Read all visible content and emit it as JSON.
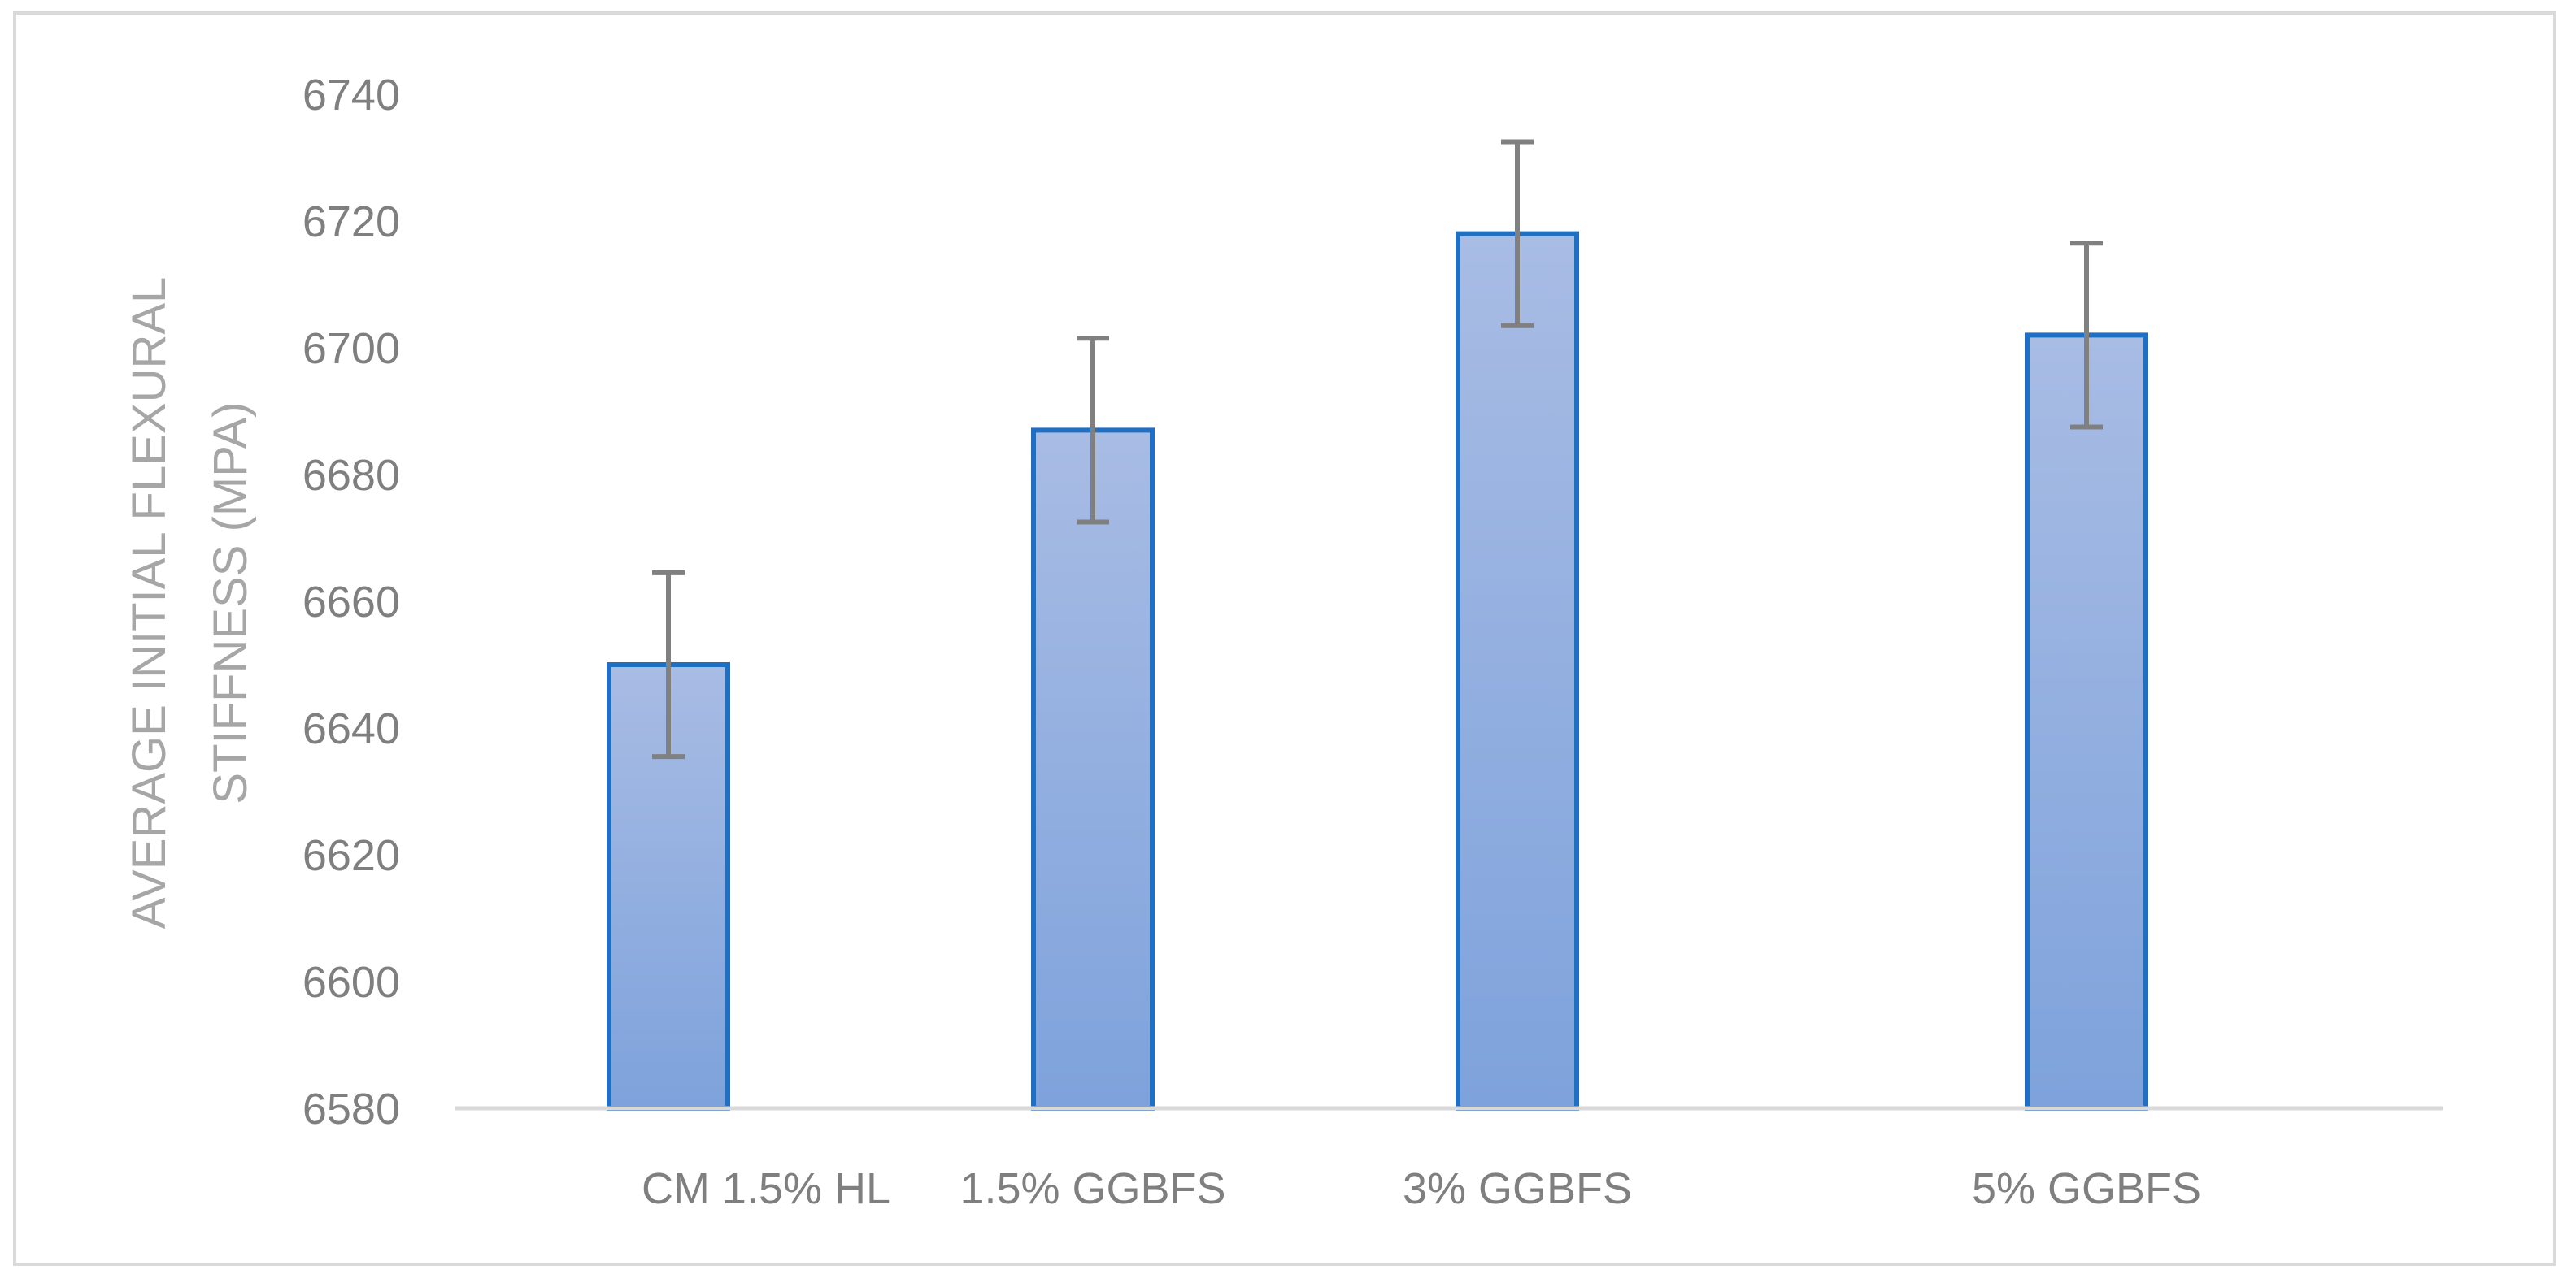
{
  "chart_data": {
    "type": "bar",
    "title": "",
    "xlabel": "",
    "ylabel_lines": [
      "AVERAGE INITIAL FLEXURAL",
      "STIFFNESS (MPA)"
    ],
    "categories": [
      "CM 1.5% HL",
      "1.5% GGBFS",
      "3% GGBFS",
      "5% GGBFS"
    ],
    "values": [
      6650,
      6687,
      6718,
      6702
    ],
    "error": [
      14.5,
      14.5,
      14.5,
      14.5
    ],
    "ylim": [
      6580,
      6740
    ],
    "yticks": [
      6580,
      6600,
      6620,
      6640,
      6660,
      6680,
      6700,
      6720,
      6740
    ],
    "grid": false,
    "legend": "none",
    "colors": {
      "bar_top": "#a8bce4",
      "bar_bottom": "#7ea2dc",
      "bar_border": "#1f6fc2",
      "error_bar": "#808080",
      "axis_line": "#d9d9d9"
    }
  }
}
